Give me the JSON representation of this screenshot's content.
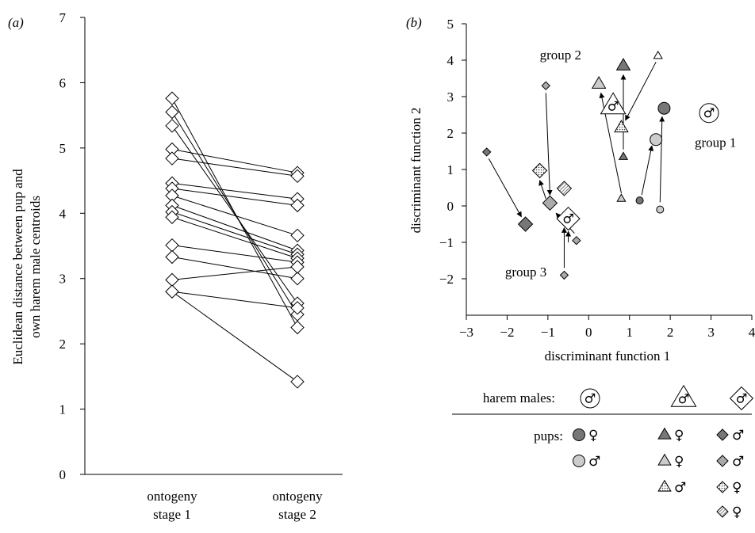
{
  "chart_data": [
    {
      "type": "line",
      "panel": "(a)",
      "ylabel": "Euclidean distance between pup and own harem male centroids",
      "ylabel_lines": [
        "Euclidean distance between pup and",
        "own harem male centroids"
      ],
      "categories": [
        {
          "line1": "ontogeny",
          "line2": "stage 1"
        },
        {
          "line1": "ontogeny",
          "line2": "stage 2"
        }
      ],
      "ylim": [
        0,
        7
      ],
      "yticks": [
        0,
        1,
        2,
        3,
        4,
        5,
        6,
        7
      ],
      "marker": "open-diamond",
      "series": [
        {
          "values": [
            5.76,
            2.25
          ]
        },
        {
          "values": [
            5.55,
            2.45
          ]
        },
        {
          "values": [
            5.34,
            2.62
          ]
        },
        {
          "values": [
            4.98,
            4.62
          ]
        },
        {
          "values": [
            4.84,
            4.57
          ]
        },
        {
          "values": [
            4.46,
            4.22
          ]
        },
        {
          "values": [
            4.38,
            4.12
          ]
        },
        {
          "values": [
            4.27,
            3.66
          ]
        },
        {
          "values": [
            4.12,
            3.43
          ]
        },
        {
          "values": [
            4.02,
            3.37
          ]
        },
        {
          "values": [
            3.94,
            3.31
          ]
        },
        {
          "values": [
            3.51,
            3.25
          ]
        },
        {
          "values": [
            3.33,
            3.0
          ]
        },
        {
          "values": [
            2.98,
            3.18
          ]
        },
        {
          "values": [
            2.8,
            2.55
          ]
        },
        {
          "values": [
            2.8,
            1.42
          ]
        }
      ]
    },
    {
      "type": "scatter",
      "panel": "(b)",
      "xlabel": "discriminant function 1",
      "ylabel": "discriminant function 2",
      "xlim": [
        -3,
        4
      ],
      "ylim": [
        -3,
        5
      ],
      "xticks": [
        -3,
        -2,
        -1,
        0,
        1,
        2,
        3,
        4
      ],
      "yticks": [
        -2,
        -1,
        0,
        1,
        2,
        3,
        4,
        5
      ],
      "tick_labels_x": [
        "−3",
        "−2",
        "−1",
        "0",
        "1",
        "2",
        "3",
        "4"
      ],
      "tick_labels_y": [
        "−2",
        "−1",
        "0",
        "1",
        "2",
        "3",
        "4",
        "5"
      ],
      "group_labels": [
        {
          "text": "group 1",
          "x": 2.6,
          "y": 1.75
        },
        {
          "text": "group 2",
          "x": -1.2,
          "y": 4.15
        },
        {
          "text": "group 3",
          "x": -2.05,
          "y": -1.8
        }
      ],
      "harem_males": [
        {
          "shape": "circle",
          "x": 2.95,
          "y": 2.55
        },
        {
          "shape": "triangle",
          "x": 0.6,
          "y": 2.75
        },
        {
          "shape": "diamond",
          "x": -0.5,
          "y": -0.35
        }
      ],
      "pups": [
        {
          "shape": "circle",
          "fill": "#777777",
          "size": "large",
          "x": 1.85,
          "y": 2.68
        },
        {
          "shape": "circle",
          "fill": "#cccccc",
          "size": "large",
          "x": 1.65,
          "y": 1.82
        },
        {
          "shape": "circle",
          "fill": "#777777",
          "size": "small",
          "x": 1.25,
          "y": 0.15
        },
        {
          "shape": "circle",
          "fill": "#cccccc",
          "size": "small",
          "x": 1.75,
          "y": -0.1
        },
        {
          "shape": "triangle",
          "fill": "#777777",
          "size": "large",
          "x": 0.85,
          "y": 3.85
        },
        {
          "shape": "triangle",
          "fill": "#cccccc",
          "size": "large",
          "x": 0.25,
          "y": 3.35
        },
        {
          "shape": "triangle",
          "fill": "dotted",
          "size": "large",
          "x": 0.8,
          "y": 2.15
        },
        {
          "shape": "triangle",
          "fill": "#777777",
          "size": "small",
          "x": 0.85,
          "y": 1.35
        },
        {
          "shape": "triangle",
          "fill": "#cccccc",
          "size": "small",
          "x": 0.8,
          "y": 0.2
        },
        {
          "shape": "triangle",
          "fill": "#ffffff",
          "size": "small",
          "x": 1.7,
          "y": 4.12
        },
        {
          "shape": "diamond",
          "fill": "#777777",
          "size": "large",
          "x": -1.55,
          "y": -0.5
        },
        {
          "shape": "diamond",
          "fill": "#aaaaaa",
          "size": "large",
          "x": -0.95,
          "y": 0.08
        },
        {
          "shape": "diamond",
          "fill": "dotted",
          "size": "large",
          "x": -1.2,
          "y": 0.97
        },
        {
          "shape": "diamond",
          "fill": "hatched",
          "size": "large",
          "x": -0.6,
          "y": 0.48
        },
        {
          "shape": "diamond",
          "fill": "#777777",
          "size": "small",
          "x": -2.5,
          "y": 1.48
        },
        {
          "shape": "diamond",
          "fill": "#aaaaaa",
          "size": "small",
          "x": -0.3,
          "y": -0.95
        },
        {
          "shape": "diamond",
          "fill": "#aaaaaa",
          "size": "small",
          "x": -1.05,
          "y": 3.3
        },
        {
          "shape": "diamond",
          "fill": "#aaaaaa",
          "size": "small",
          "x": -0.6,
          "y": -1.9
        }
      ],
      "arrows": [
        {
          "from": [
            -2.45,
            1.3
          ],
          "to": [
            -1.65,
            -0.3
          ]
        },
        {
          "from": [
            -1.05,
            3.1
          ],
          "to": [
            -0.95,
            0.3
          ]
        },
        {
          "from": [
            -0.35,
            -0.75
          ],
          "to": [
            -0.8,
            -0.2
          ]
        },
        {
          "from": [
            -0.6,
            -1.7
          ],
          "to": [
            -0.6,
            -0.6
          ]
        },
        {
          "from": [
            -1.05,
            0.2
          ],
          "to": [
            -1.2,
            0.7
          ]
        },
        {
          "from": [
            0.8,
            0.35
          ],
          "to": [
            0.3,
            3.1
          ]
        },
        {
          "from": [
            0.85,
            1.55
          ],
          "to": [
            0.85,
            3.6
          ]
        },
        {
          "from": [
            1.65,
            3.95
          ],
          "to": [
            0.9,
            2.35
          ]
        },
        {
          "from": [
            1.3,
            0.3
          ],
          "to": [
            1.55,
            1.65
          ]
        },
        {
          "from": [
            1.75,
            0.1
          ],
          "to": [
            1.8,
            2.45
          ]
        },
        {
          "from": [
            -0.5,
            -1.0
          ],
          "to": [
            -0.5,
            -0.7
          ]
        }
      ],
      "legend": {
        "harem_label": "harem males:",
        "pups_label": "pups:",
        "female": "♀",
        "male": "♂",
        "columns": [
          {
            "shape": "circle",
            "pups": [
              {
                "fill": "#777777",
                "sex": "♀"
              },
              {
                "fill": "#cccccc",
                "sex": "♂"
              }
            ]
          },
          {
            "shape": "triangle",
            "pups": [
              {
                "fill": "#777777",
                "sex": "♀"
              },
              {
                "fill": "#cccccc",
                "sex": "♀"
              },
              {
                "fill": "dotted",
                "sex": "♂"
              }
            ]
          },
          {
            "shape": "diamond",
            "pups": [
              {
                "fill": "#777777",
                "sex": "♂"
              },
              {
                "fill": "#aaaaaa",
                "sex": "♂"
              },
              {
                "fill": "dotted",
                "sex": "♀"
              },
              {
                "fill": "hatched",
                "sex": "♀"
              }
            ]
          }
        ]
      }
    }
  ]
}
